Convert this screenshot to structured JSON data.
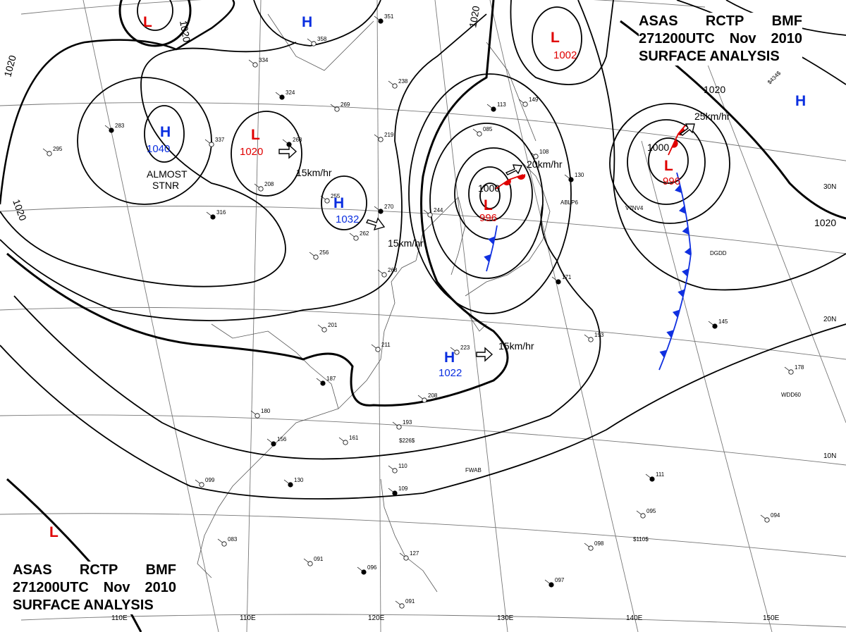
{
  "title": {
    "line1": [
      "ASAS",
      "RCTP",
      "BMF"
    ],
    "line2": [
      "271200UTC",
      "Nov",
      "2010"
    ],
    "line3": "SURFACE ANALYSIS"
  },
  "colors": {
    "high": "#0a2ee0",
    "low": "#e00000",
    "cold_front": "#1030e0",
    "warm_front": "#e00000",
    "isobar": "#000000",
    "coast": "#555555",
    "grid": "#777777"
  },
  "pressure_systems": [
    {
      "type": "H",
      "value": "1040",
      "note": "ALMOST STNR"
    },
    {
      "type": "H",
      "value": "1032"
    },
    {
      "type": "H",
      "value": "1022"
    },
    {
      "type": "H",
      "value": ""
    },
    {
      "type": "H",
      "value": ""
    },
    {
      "type": "L",
      "value": "1020"
    },
    {
      "type": "L",
      "value": "1002"
    },
    {
      "type": "L",
      "value": "996"
    },
    {
      "type": "L",
      "value": "996"
    },
    {
      "type": "L",
      "value": ""
    },
    {
      "type": "L",
      "value": ""
    }
  ],
  "motion_labels": [
    "15km/hr",
    "15km/hr",
    "15km/hr",
    "20km/hr",
    "25km/hr"
  ],
  "isobar_labels": [
    "1020",
    "1020",
    "1020",
    "1020",
    "1020",
    "1020",
    "1000",
    "1000"
  ],
  "longitude_labels": [
    "110E",
    "120E",
    "130E",
    "140E",
    "150E"
  ],
  "latitude_labels": [
    "30N",
    "20N",
    "10N"
  ],
  "stations": [
    {
      "id": "351"
    },
    {
      "id": "358"
    },
    {
      "id": "334"
    },
    {
      "id": "324"
    },
    {
      "id": "238"
    },
    {
      "id": "269"
    },
    {
      "id": "283"
    },
    {
      "id": "295"
    },
    {
      "id": "337"
    },
    {
      "id": "268"
    },
    {
      "id": "219"
    },
    {
      "id": "085"
    },
    {
      "id": "113"
    },
    {
      "id": "149"
    },
    {
      "id": "108"
    },
    {
      "id": "130"
    },
    {
      "id": "208"
    },
    {
      "id": "255"
    },
    {
      "id": "270"
    },
    {
      "id": "244"
    },
    {
      "id": "262"
    },
    {
      "id": "316"
    },
    {
      "id": "256"
    },
    {
      "id": "268"
    },
    {
      "id": "171"
    },
    {
      "id": "201"
    },
    {
      "id": "211"
    },
    {
      "id": "187"
    },
    {
      "id": "208"
    },
    {
      "id": "180"
    },
    {
      "id": "156"
    },
    {
      "id": "161"
    },
    {
      "id": "193"
    },
    {
      "id": "130"
    },
    {
      "id": "099"
    },
    {
      "id": "110"
    },
    {
      "id": "109"
    },
    {
      "id": "083"
    },
    {
      "id": "091"
    },
    {
      "id": "096"
    },
    {
      "id": "127"
    },
    {
      "id": "091"
    },
    {
      "id": "097"
    },
    {
      "id": "098"
    },
    {
      "id": "095"
    },
    {
      "id": "111"
    },
    {
      "id": "094"
    },
    {
      "id": "178"
    },
    {
      "id": "145"
    },
    {
      "id": "193"
    },
    {
      "id": "223"
    }
  ],
  "station_callsigns": [
    "ABLP6",
    "V7NV4",
    "DGDD",
    "WDD60",
    "FWAB",
    "$226$",
    "$434$",
    "$110$"
  ]
}
